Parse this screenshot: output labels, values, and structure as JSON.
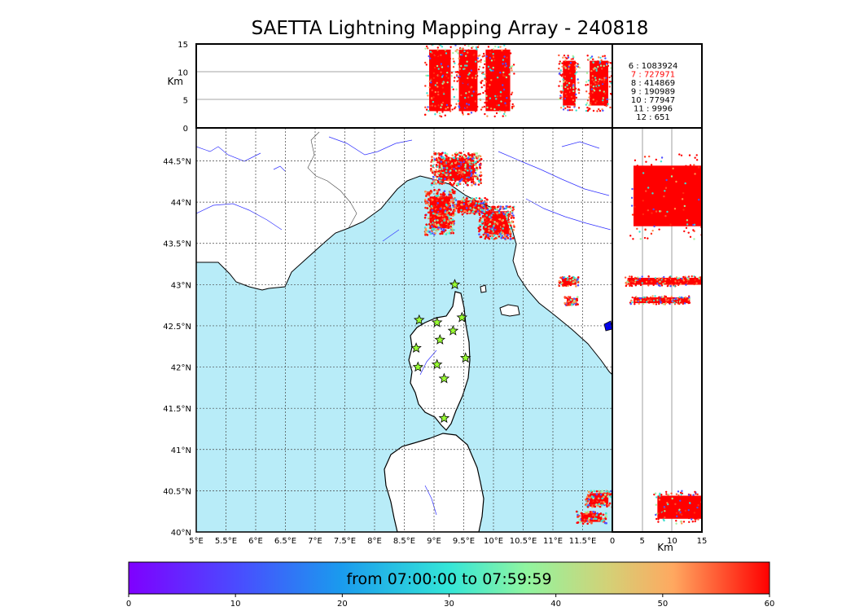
{
  "title": "SAETTA Lightning Mapping Array - 240818",
  "chart_data": {
    "type": "scatter",
    "map": {
      "lon_ticks": [
        "5°E",
        "5.5°E",
        "6°E",
        "6.5°E",
        "7°E",
        "7.5°E",
        "8°E",
        "8.5°E",
        "9°E",
        "9.5°E",
        "10°E",
        "10.5°E",
        "11°E",
        "11.5°E"
      ],
      "lat_ticks": [
        "40°N",
        "40.5°N",
        "41°N",
        "41.5°N",
        "42°N",
        "42.5°N",
        "43°N",
        "43.5°N",
        "44°N",
        "44.5°N"
      ],
      "lon_range": [
        5,
        12
      ],
      "lat_range": [
        40,
        44.9
      ],
      "grid": true,
      "sea_color": "#b8ecf8",
      "land_color": "#ffffff",
      "river_color": "#3030ff",
      "station_color": "#99ff33",
      "stations": [
        [
          9.35,
          43.0
        ],
        [
          8.75,
          42.57
        ],
        [
          9.05,
          42.54
        ],
        [
          9.47,
          42.6
        ],
        [
          9.32,
          42.44
        ],
        [
          9.1,
          42.33
        ],
        [
          8.7,
          42.23
        ],
        [
          9.53,
          42.11
        ],
        [
          8.73,
          42.0
        ],
        [
          9.05,
          42.03
        ],
        [
          9.17,
          41.86
        ],
        [
          9.17,
          41.38
        ]
      ],
      "clusters": [
        {
          "lon": [
            8.85,
            9.35
          ],
          "lat": [
            43.6,
            44.15
          ]
        },
        {
          "lon": [
            8.95,
            9.8
          ],
          "lat": [
            44.2,
            44.6
          ]
        },
        {
          "lon": [
            9.3,
            9.9
          ],
          "lat": [
            43.85,
            44.05
          ]
        },
        {
          "lon": [
            9.75,
            10.35
          ],
          "lat": [
            43.55,
            43.95
          ]
        },
        {
          "lon": [
            11.1,
            11.45
          ],
          "lat": [
            42.98,
            43.1
          ]
        },
        {
          "lon": [
            11.2,
            11.42
          ],
          "lat": [
            42.75,
            42.85
          ]
        },
        {
          "lon": [
            11.55,
            12.0
          ],
          "lat": [
            40.3,
            40.5
          ]
        },
        {
          "lon": [
            11.4,
            11.9
          ],
          "lat": [
            40.1,
            40.25
          ]
        }
      ]
    },
    "altitude_panel": {
      "ylabel": "Km",
      "yticks": [
        "0",
        "5",
        "10",
        "15"
      ],
      "ylim": [
        0,
        15
      ]
    },
    "lat_alt_panel": {
      "xlabel": "Km",
      "xticks": [
        "0",
        "5",
        "10",
        "15"
      ],
      "xlim": [
        0,
        15
      ]
    },
    "station_counts": [
      {
        "label": "6  :  1083924",
        "color": "#000000"
      },
      {
        "label": "7  :   727971",
        "color": "#ff0000"
      },
      {
        "label": "8  :   414869",
        "color": "#000000"
      },
      {
        "label": "9  :   190989",
        "color": "#000000"
      },
      {
        "label": "10  :    77947",
        "color": "#000000"
      },
      {
        "label": "11  :     9996",
        "color": "#000000"
      },
      {
        "label": "12  :      651",
        "color": "#000000"
      }
    ],
    "colorbar": {
      "title": "from 07:00:00 to 07:59:59",
      "ticks": [
        "0",
        "10",
        "20",
        "30",
        "40",
        "50",
        "60"
      ],
      "range": [
        0,
        60
      ],
      "colormap": "rainbow"
    }
  }
}
